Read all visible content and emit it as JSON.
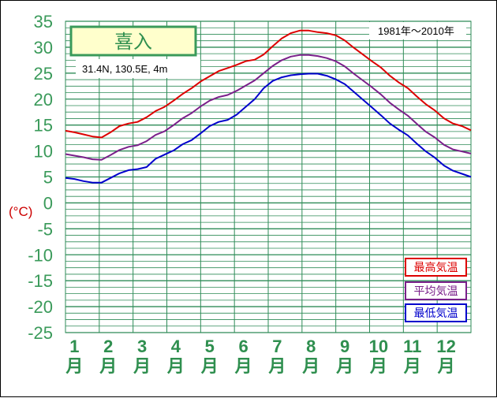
{
  "chart_data": {
    "type": "line",
    "title": "喜入",
    "subtitle": "31.4N,  130.5E,  4m",
    "period": "1981年〜2010年",
    "ylabel": "(°C)",
    "xlabel": "",
    "ylim": [
      -25,
      35
    ],
    "yticks": [
      "35",
      "30",
      "25",
      "20",
      "15",
      "10",
      "5",
      "0",
      "-5",
      "-10",
      "-15",
      "-20",
      "-25"
    ],
    "months": [
      "1",
      "2",
      "3",
      "4",
      "5",
      "6",
      "7",
      "8",
      "9",
      "10",
      "11",
      "12"
    ],
    "month_suffix": "月",
    "grid": true,
    "legend_position": "bottom-right",
    "series": [
      {
        "name": "最高気温",
        "color": "#dd0000",
        "values": [
          13.9,
          13.6,
          13.2,
          12.8,
          12.6,
          13.6,
          14.8,
          15.3,
          15.6,
          16.5,
          17.7,
          18.5,
          19.7,
          21.0,
          22.1,
          23.4,
          24.4,
          25.4,
          26.0,
          26.6,
          27.3,
          27.6,
          28.6,
          30.2,
          31.7,
          32.7,
          33.2,
          33.2,
          32.9,
          32.7,
          32.3,
          31.3,
          29.9,
          28.6,
          27.3,
          26.1,
          24.5,
          23.2,
          22.1,
          20.5,
          19.0,
          17.8,
          16.3,
          15.3,
          14.8,
          14.0
        ]
      },
      {
        "name": "平均気温",
        "color": "#7a1f8a",
        "values": [
          9.4,
          9.1,
          8.8,
          8.4,
          8.3,
          9.2,
          10.2,
          10.8,
          11.1,
          11.9,
          13.1,
          13.8,
          15.0,
          16.3,
          17.3,
          18.6,
          19.7,
          20.4,
          20.8,
          21.6,
          22.6,
          23.6,
          25.0,
          26.4,
          27.5,
          28.2,
          28.5,
          28.5,
          28.3,
          27.9,
          27.3,
          26.3,
          24.9,
          23.6,
          22.3,
          20.9,
          19.3,
          18.0,
          16.8,
          15.2,
          13.7,
          12.6,
          11.2,
          10.3,
          9.9,
          9.5
        ]
      },
      {
        "name": "最低気温",
        "color": "#0000cc",
        "values": [
          4.8,
          4.6,
          4.2,
          3.9,
          3.9,
          4.8,
          5.7,
          6.3,
          6.5,
          6.9,
          8.5,
          9.3,
          10.1,
          11.3,
          12.1,
          13.4,
          14.8,
          15.6,
          16.0,
          17.0,
          18.5,
          20.0,
          22.1,
          23.5,
          24.2,
          24.6,
          24.8,
          24.9,
          24.9,
          24.5,
          23.8,
          22.9,
          21.4,
          19.9,
          18.4,
          16.9,
          15.3,
          14.1,
          13.0,
          11.4,
          9.9,
          8.7,
          7.2,
          6.2,
          5.6,
          5.0
        ]
      }
    ]
  }
}
